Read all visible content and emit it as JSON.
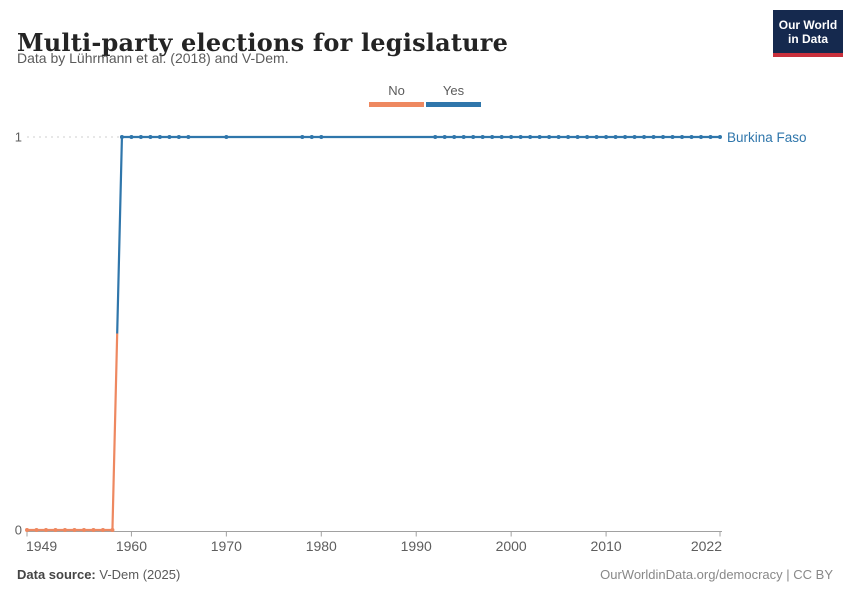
{
  "header": {
    "title": "Multi-party elections for legislature",
    "subtitle": "Data by Lührmann et al. (2018) and V-Dem."
  },
  "logo": {
    "line1": "Our World",
    "line2": "in Data",
    "bg_color": "#15294e",
    "stripe_color": "#c9303c"
  },
  "legend": {
    "items": [
      {
        "label": "No",
        "color": "#ee8860"
      },
      {
        "label": "Yes",
        "color": "#2f76ab"
      }
    ]
  },
  "footer": {
    "source_label": "Data source:",
    "source_value": "V-Dem (2025)",
    "right_text": "OurWorldinData.org/democracy | CC BY"
  },
  "chart_data": {
    "type": "line",
    "title": "Multi-party elections for legislature",
    "entity": "Burkina Faso",
    "entity_color": "#2f76ab",
    "x_range": [
      1949,
      2022
    ],
    "y_range": [
      0,
      1
    ],
    "x_ticks": [
      1949,
      1960,
      1970,
      1980,
      1990,
      2000,
      2010,
      2022
    ],
    "y_ticks": [
      0,
      1
    ],
    "grid": "dashed horizontal gridline at y=1",
    "legend_position": "top-center",
    "axis_color": "#a1a1a1",
    "grid_color": "#cfcfcf",
    "tick_label_color": "#5e5e5e",
    "series": [
      {
        "name": "No",
        "value": 0,
        "color": "#ee8860",
        "start_year": 1949,
        "end_year": 1958,
        "marker_years": [
          1949,
          1950,
          1951,
          1952,
          1953,
          1954,
          1955,
          1956,
          1957,
          1958
        ]
      },
      {
        "name": "Yes",
        "value": 1,
        "color": "#2f76ab",
        "start_year": 1959,
        "end_year": 2022,
        "marker_years": [
          1959,
          1960,
          1961,
          1962,
          1963,
          1964,
          1965,
          1966,
          1970,
          1978,
          1979,
          1980,
          1992,
          1993,
          1994,
          1995,
          1996,
          1997,
          1998,
          1999,
          2000,
          2001,
          2002,
          2003,
          2004,
          2005,
          2006,
          2007,
          2008,
          2009,
          2010,
          2011,
          2012,
          2013,
          2014,
          2015,
          2016,
          2017,
          2018,
          2019,
          2020,
          2021,
          2022
        ]
      }
    ],
    "step": {
      "from": {
        "year": 1958,
        "value": 0
      },
      "to": {
        "year": 1959,
        "value": 1
      }
    }
  }
}
